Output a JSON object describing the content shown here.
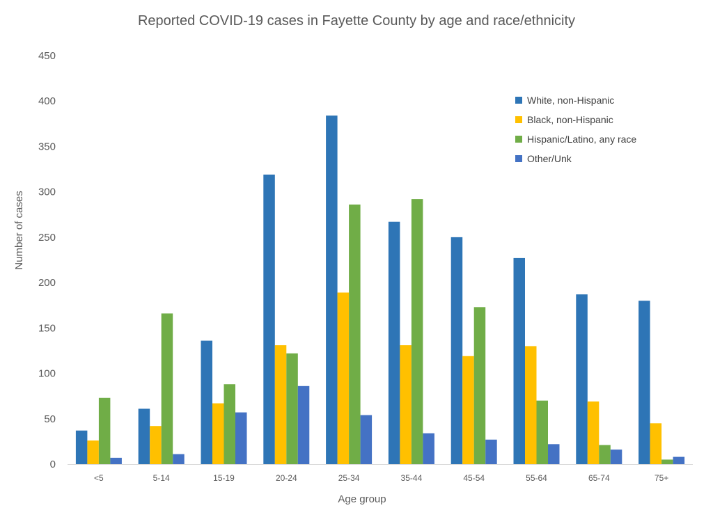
{
  "chart_data": {
    "type": "bar",
    "title": "Reported COVID-19 cases in Fayette County by age and race/ethnicity",
    "xlabel": "Age group",
    "ylabel": "Number of cases",
    "ylim": [
      0,
      450
    ],
    "yticks": [
      0,
      50,
      100,
      150,
      200,
      250,
      300,
      350,
      400,
      450
    ],
    "grid": false,
    "legend_position": "top-right",
    "categories": [
      "<5",
      "5-14",
      "15-19",
      "20-24",
      "25-34",
      "35-44",
      "45-54",
      "55-64",
      "65-74",
      "75+"
    ],
    "series": [
      {
        "name": "White, non-Hispanic",
        "color": "#2E75B6",
        "values": [
          37,
          61,
          136,
          319,
          384,
          267,
          250,
          227,
          187,
          180
        ]
      },
      {
        "name": "Black, non-Hispanic",
        "color": "#FFC000",
        "values": [
          26,
          42,
          67,
          131,
          189,
          131,
          119,
          130,
          69,
          45
        ]
      },
      {
        "name": "Hispanic/Latino, any race",
        "color": "#70AD47",
        "values": [
          73,
          166,
          88,
          122,
          286,
          292,
          173,
          70,
          21,
          5
        ]
      },
      {
        "name": "Other/Unk",
        "color": "#4472C4",
        "values": [
          7,
          11,
          57,
          86,
          54,
          34,
          27,
          22,
          16,
          8
        ]
      }
    ]
  }
}
